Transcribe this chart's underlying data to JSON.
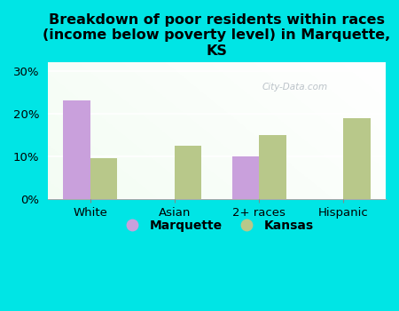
{
  "title": "Breakdown of poor residents within races\n(income below poverty level) in Marquette,\nKS",
  "categories": [
    "White",
    "Asian",
    "2+ races",
    "Hispanic"
  ],
  "marquette_values": [
    23.0,
    0.0,
    10.0,
    0.0
  ],
  "kansas_values": [
    9.5,
    12.5,
    15.0,
    19.0
  ],
  "marquette_color": "#c9a0dc",
  "kansas_color": "#b8c88a",
  "background_color": "#00e5e5",
  "ylim": [
    0,
    32
  ],
  "yticks": [
    0,
    10,
    20,
    30
  ],
  "ytick_labels": [
    "0%",
    "10%",
    "20%",
    "30%"
  ],
  "bar_width": 0.32,
  "legend_labels": [
    "Marquette",
    "Kansas"
  ],
  "title_fontsize": 11.5,
  "tick_fontsize": 9.5,
  "legend_fontsize": 10
}
